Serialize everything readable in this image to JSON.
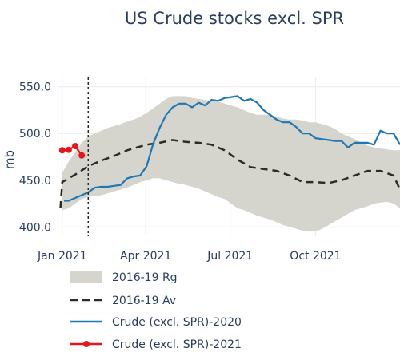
{
  "chart_data": {
    "type": "line",
    "title": "US Crude stocks excl. SPR",
    "ylabel": "mb",
    "xlabel": "",
    "ylim": [
      390,
      560
    ],
    "xlim": [
      "2020-12-27",
      "2021-12-31"
    ],
    "y_ticks": [
      400,
      450,
      500,
      550
    ],
    "y_tick_labels": [
      "400.0",
      "450.0",
      "500.0",
      "550.0"
    ],
    "x_ticks": [
      "2021-01-01",
      "2021-04-01",
      "2021-07-01",
      "2021-10-01"
    ],
    "x_tick_labels": [
      "Jan 2021",
      "Apr 2021",
      "Jul 2021",
      "Oct 2021"
    ],
    "grid": true,
    "legend_position": "bottom",
    "vertical_marker": {
      "x": "2021-01-29",
      "style": "dotted"
    },
    "series": [
      {
        "name": "2016-19 Rg",
        "kind": "range",
        "color": "#d5d5cd",
        "x": [
          "2021-01-01",
          "2021-01-08",
          "2021-01-15",
          "2021-01-22",
          "2021-01-29",
          "2021-02-05",
          "2021-02-12",
          "2021-02-19",
          "2021-02-26",
          "2021-03-05",
          "2021-03-12",
          "2021-03-19",
          "2021-03-26",
          "2021-04-02",
          "2021-04-09",
          "2021-04-16",
          "2021-04-23",
          "2021-04-30",
          "2021-05-07",
          "2021-05-14",
          "2021-05-21",
          "2021-05-28",
          "2021-06-04",
          "2021-06-11",
          "2021-06-18",
          "2021-06-25",
          "2021-07-02",
          "2021-07-09",
          "2021-07-16",
          "2021-07-23",
          "2021-07-30",
          "2021-08-06",
          "2021-08-13",
          "2021-08-20",
          "2021-08-27",
          "2021-09-03",
          "2021-09-10",
          "2021-09-17",
          "2021-09-24",
          "2021-10-01",
          "2021-10-08",
          "2021-10-15",
          "2021-10-22",
          "2021-10-29",
          "2021-11-05",
          "2021-11-12",
          "2021-11-19",
          "2021-11-26",
          "2021-12-03",
          "2021-12-10",
          "2021-12-17",
          "2021-12-24",
          "2021-12-31"
        ],
        "low": [
          418,
          420,
          425,
          430,
          432,
          433,
          434,
          436,
          438,
          440,
          442,
          445,
          448,
          450,
          452,
          452,
          450,
          448,
          446,
          445,
          443,
          441,
          438,
          435,
          432,
          430,
          425,
          420,
          418,
          415,
          412,
          410,
          408,
          405,
          402,
          400,
          398,
          396,
          395,
          395,
          398,
          402,
          406,
          410,
          414,
          418,
          420,
          422,
          425,
          426,
          427,
          425,
          420
        ],
        "high": [
          458,
          470,
          480,
          490,
          497,
          500,
          503,
          506,
          508,
          510,
          513,
          515,
          518,
          522,
          527,
          532,
          537,
          540,
          540,
          540,
          538,
          537,
          536,
          535,
          534,
          532,
          530,
          528,
          525,
          522,
          520,
          520,
          520,
          518,
          516,
          515,
          515,
          514,
          512,
          512,
          510,
          508,
          505,
          500,
          497,
          494,
          490,
          487,
          485,
          484,
          483,
          482,
          482
        ]
      },
      {
        "name": "2016-19 Av",
        "kind": "line",
        "dash": true,
        "color": "#2b2b2b",
        "x": [
          "2020-12-30",
          "2021-01-01",
          "2021-01-08",
          "2021-01-15",
          "2021-01-29",
          "2021-02-12",
          "2021-02-26",
          "2021-03-12",
          "2021-03-26",
          "2021-04-02",
          "2021-04-16",
          "2021-04-30",
          "2021-05-14",
          "2021-05-28",
          "2021-06-11",
          "2021-06-25",
          "2021-07-09",
          "2021-07-23",
          "2021-08-06",
          "2021-08-20",
          "2021-09-03",
          "2021-09-17",
          "2021-10-01",
          "2021-10-15",
          "2021-10-29",
          "2021-11-12",
          "2021-11-26",
          "2021-12-10",
          "2021-12-24",
          "2021-12-31"
        ],
        "values": [
          420,
          448,
          452,
          456,
          465,
          471,
          476,
          482,
          486,
          488,
          490,
          493,
          491,
          490,
          488,
          482,
          472,
          464,
          462,
          460,
          455,
          448,
          448,
          447,
          450,
          455,
          460,
          460,
          455,
          440
        ]
      },
      {
        "name": "Crude (excl. SPR)-2020",
        "kind": "line",
        "color": "#1f77b4",
        "x": [
          "2021-01-03",
          "2021-01-08",
          "2021-01-15",
          "2021-01-22",
          "2021-01-29",
          "2021-02-05",
          "2021-02-12",
          "2021-02-19",
          "2021-02-26",
          "2021-03-05",
          "2021-03-12",
          "2021-03-19",
          "2021-03-26",
          "2021-04-02",
          "2021-04-09",
          "2021-04-16",
          "2021-04-23",
          "2021-04-30",
          "2021-05-07",
          "2021-05-14",
          "2021-05-21",
          "2021-05-28",
          "2021-06-04",
          "2021-06-11",
          "2021-06-18",
          "2021-06-25",
          "2021-07-02",
          "2021-07-09",
          "2021-07-16",
          "2021-07-23",
          "2021-07-30",
          "2021-08-06",
          "2021-08-13",
          "2021-08-20",
          "2021-08-27",
          "2021-09-03",
          "2021-09-10",
          "2021-09-17",
          "2021-09-24",
          "2021-10-01",
          "2021-10-08",
          "2021-10-15",
          "2021-10-22",
          "2021-10-29",
          "2021-11-05",
          "2021-11-12",
          "2021-11-19",
          "2021-11-26",
          "2021-12-03",
          "2021-12-10",
          "2021-12-17",
          "2021-12-24",
          "2021-12-31"
        ],
        "values": [
          428,
          428,
          431,
          434,
          437,
          442,
          443,
          443,
          444,
          445,
          452,
          454,
          455,
          465,
          489,
          506,
          520,
          528,
          532,
          532,
          528,
          533,
          530,
          536,
          535,
          538,
          539,
          540,
          535,
          537,
          533,
          525,
          520,
          515,
          512,
          512,
          507,
          500,
          500,
          495,
          494,
          493,
          492,
          492,
          485,
          490,
          490,
          490,
          488,
          503,
          500,
          500,
          488
        ]
      },
      {
        "name": "Crude (excl. SPR)-2021",
        "kind": "line-markers",
        "color": "#e8151b",
        "x": [
          "2021-01-01",
          "2021-01-08",
          "2021-01-15",
          "2021-01-22"
        ],
        "values": [
          482.0,
          482.5,
          486.5,
          476.5
        ]
      }
    ]
  }
}
